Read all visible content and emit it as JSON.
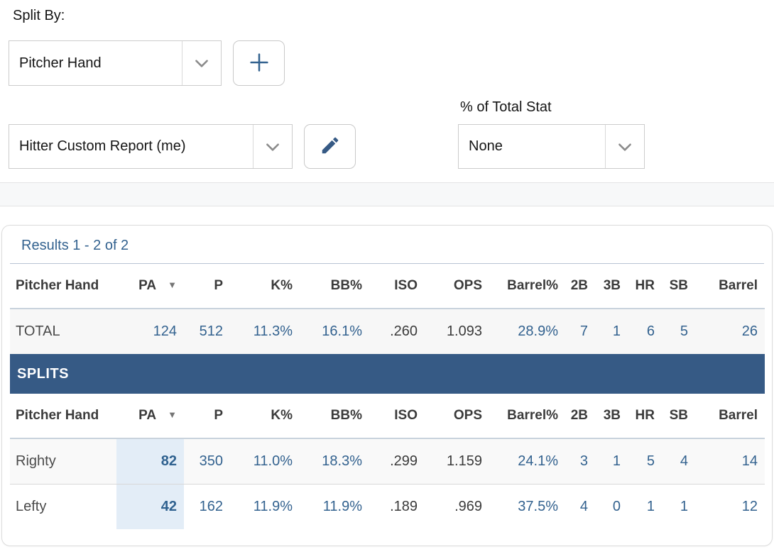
{
  "controls": {
    "split_by_label": "Split By:",
    "split_by_value": "Pitcher Hand",
    "report_value": "Hitter Custom Report (me)",
    "pct_total_label": "% of Total Stat",
    "pct_total_value": "None"
  },
  "results": {
    "summary": "Results 1 - 2 of 2",
    "columns": [
      "Pitcher Hand",
      "PA",
      "P",
      "K%",
      "BB%",
      "ISO",
      "OPS",
      "Barrel%",
      "2B",
      "3B",
      "HR",
      "SB",
      "Barrel"
    ],
    "sort_column": "PA",
    "dark_columns": [
      "ISO",
      "OPS"
    ],
    "total_row": {
      "label": "TOTAL",
      "values": [
        "124",
        "512",
        "11.3%",
        "16.1%",
        ".260",
        "1.093",
        "28.9%",
        "7",
        "1",
        "6",
        "5",
        "26"
      ]
    },
    "splits_header": "SPLITS",
    "split_rows": [
      {
        "label": "Righty",
        "values": [
          "82",
          "350",
          "11.0%",
          "18.3%",
          ".299",
          "1.159",
          "24.1%",
          "3",
          "1",
          "5",
          "4",
          "14"
        ]
      },
      {
        "label": "Lefty",
        "values": [
          "42",
          "162",
          "11.9%",
          "11.9%",
          ".189",
          ".969",
          "37.5%",
          "4",
          "0",
          "1",
          "1",
          "12"
        ]
      }
    ]
  },
  "colors": {
    "link_blue": "#33628f",
    "splits_bar": "#365a85",
    "pa_highlight": "#e3edf7",
    "total_stripe": "#f7f7f7"
  }
}
